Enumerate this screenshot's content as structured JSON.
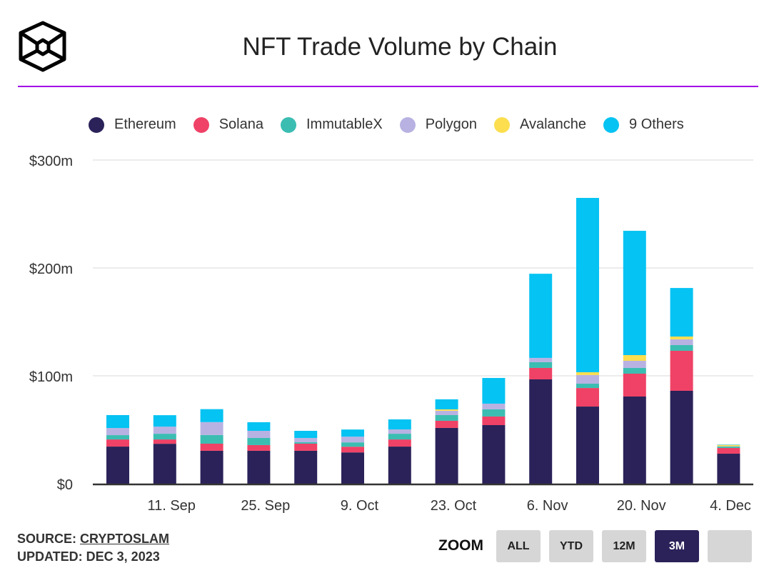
{
  "title": "NFT Trade Volume by Chain",
  "colors": {
    "accent_rule": "#a000e6",
    "active_button": "#2a2259"
  },
  "chart_data": {
    "type": "bar",
    "stacked": true,
    "title": "NFT Trade Volume by Chain",
    "xlabel": "",
    "ylabel": "",
    "ylim": [
      0,
      300
    ],
    "y_ticks": [
      0,
      100,
      200,
      300
    ],
    "y_tick_labels": [
      "$0",
      "$100m",
      "$200m",
      "$300m"
    ],
    "grid": true,
    "legend_placement": "top",
    "x_days": [
      0,
      7,
      14,
      21,
      28,
      35,
      42,
      49,
      56,
      63,
      70,
      77,
      84,
      91
    ],
    "x_ticks": [
      {
        "day": 8,
        "label": "11. Sep"
      },
      {
        "day": 22,
        "label": "25. Sep"
      },
      {
        "day": 36,
        "label": "9. Oct"
      },
      {
        "day": 50,
        "label": "23. Oct"
      },
      {
        "day": 64,
        "label": "6. Nov"
      },
      {
        "day": 78,
        "label": "20. Nov"
      },
      {
        "day": 92,
        "label": "4. Dec"
      }
    ],
    "series": [
      {
        "name": "Ethereum",
        "color": "#2a2259",
        "values": [
          34.4,
          37,
          30.5,
          30.5,
          30.5,
          29,
          34.4,
          51.7,
          54.3,
          96.7,
          71.5,
          80.8,
          86.1,
          27.8
        ]
      },
      {
        "name": "Solana",
        "color": "#ef4266",
        "values": [
          6.6,
          4,
          6.6,
          5.3,
          6.6,
          5.3,
          6.6,
          6.6,
          8,
          10.6,
          17.2,
          21.2,
          37.1,
          5.3
        ]
      },
      {
        "name": "ImmutableX",
        "color": "#3bbdb2",
        "values": [
          4,
          5.3,
          8,
          6.6,
          1.3,
          4,
          5.3,
          5.3,
          6.6,
          5.3,
          4,
          5.3,
          5.3,
          1.3
        ]
      },
      {
        "name": "Polygon",
        "color": "#b8b2e2",
        "values": [
          6.6,
          6.6,
          12,
          6.6,
          4,
          5.3,
          4,
          4,
          5.3,
          4,
          8,
          6.6,
          5.3,
          0.3
        ]
      },
      {
        "name": "Avalanche",
        "color": "#fcde4f",
        "values": [
          0,
          0,
          0,
          0,
          0,
          0,
          0,
          1.3,
          0,
          0,
          2.6,
          5.3,
          2.6,
          1.3
        ]
      },
      {
        "name": "9 Others",
        "color": "#05c3f2",
        "values": [
          12,
          10.6,
          12,
          8,
          6.6,
          6.6,
          9.3,
          9.3,
          23.8,
          78,
          161.6,
          115.2,
          45,
          0.3
        ]
      }
    ]
  },
  "footer": {
    "source_label": "SOURCE:",
    "source_link": "CRYPTOSLAM",
    "updated": "UPDATED: DEC 3, 2023"
  },
  "zoom": {
    "label": "ZOOM",
    "buttons": [
      {
        "label": "ALL",
        "active": false
      },
      {
        "label": "YTD",
        "active": false
      },
      {
        "label": "12M",
        "active": false
      },
      {
        "label": "3M",
        "active": true
      },
      {
        "label": "",
        "active": false
      }
    ]
  }
}
